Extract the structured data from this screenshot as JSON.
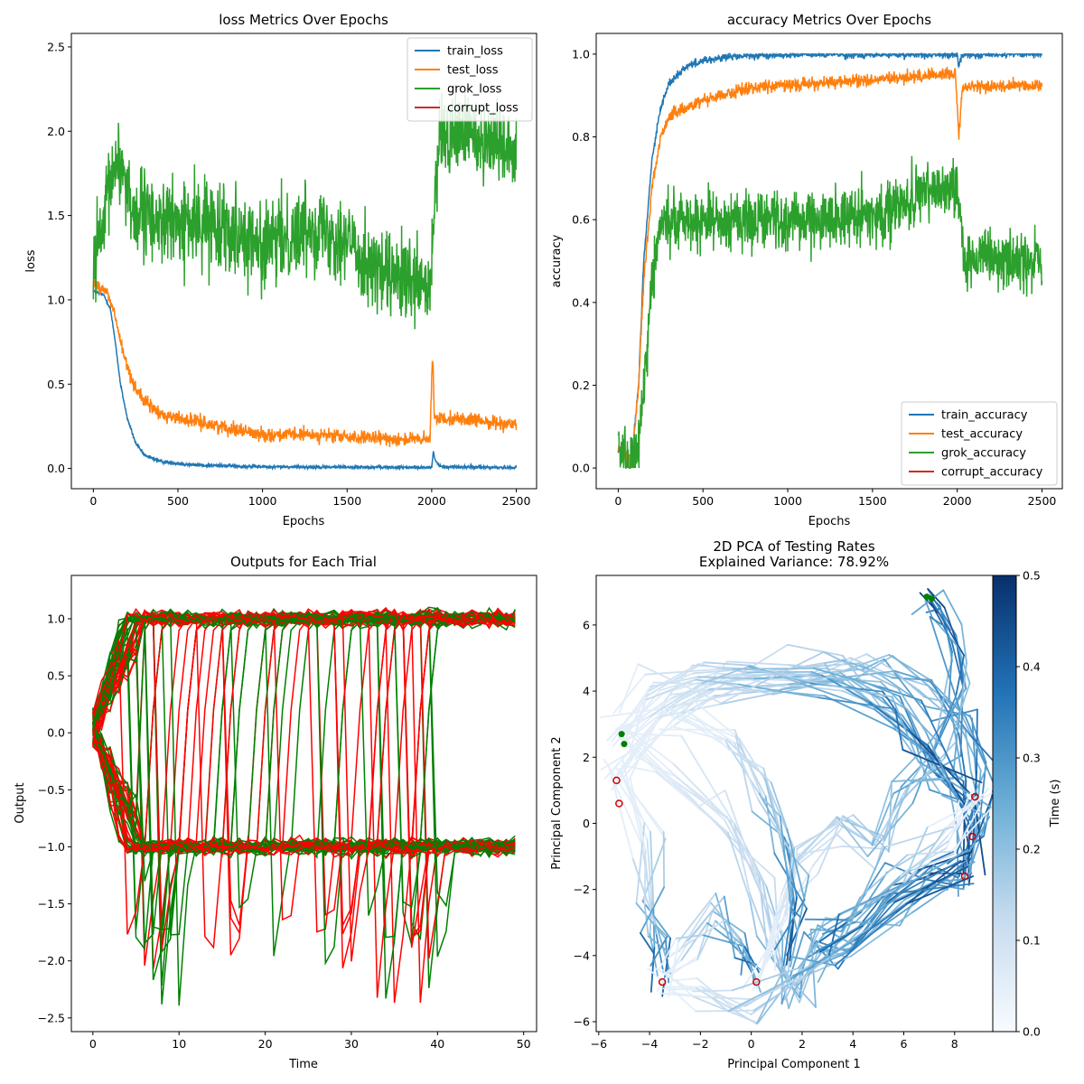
{
  "figure": {
    "colors": {
      "train": "#1f77b4",
      "test": "#ff7f0e",
      "grok": "#2ca02c",
      "corrupt": "#d62728",
      "trial_green": "#008000",
      "trial_red": "#ff0000",
      "start_green": "#008000",
      "end_red": "#d00000"
    }
  },
  "chart_data": [
    {
      "type": "line",
      "title": "loss Metrics Over Epochs",
      "xlabel": "Epochs",
      "ylabel": "loss",
      "xlim": [
        -130,
        2620
      ],
      "ylim": [
        -0.12,
        2.58
      ],
      "xticks": [
        0,
        500,
        1000,
        1500,
        2000,
        2500
      ],
      "yticks": [
        0.0,
        0.5,
        1.0,
        1.5,
        2.0,
        2.5
      ],
      "legend": "top-right",
      "series": [
        {
          "name": "train_loss",
          "color": "#1f77b4",
          "keypoints": [
            [
              0,
              1.05
            ],
            [
              60,
              1.03
            ],
            [
              100,
              0.95
            ],
            [
              130,
              0.75
            ],
            [
              160,
              0.5
            ],
            [
              200,
              0.3
            ],
            [
              250,
              0.15
            ],
            [
              300,
              0.08
            ],
            [
              400,
              0.04
            ],
            [
              600,
              0.02
            ],
            [
              1000,
              0.01
            ],
            [
              1500,
              0.008
            ],
            [
              2000,
              0.005
            ],
            [
              2010,
              0.1
            ],
            [
              2020,
              0.05
            ],
            [
              2050,
              0.01
            ],
            [
              2500,
              0.005
            ]
          ],
          "noise": 0.01
        },
        {
          "name": "test_loss",
          "color": "#ff7f0e",
          "keypoints": [
            [
              0,
              1.1
            ],
            [
              80,
              1.05
            ],
            [
              130,
              0.9
            ],
            [
              160,
              0.75
            ],
            [
              200,
              0.6
            ],
            [
              250,
              0.48
            ],
            [
              300,
              0.4
            ],
            [
              400,
              0.32
            ],
            [
              600,
              0.28
            ],
            [
              800,
              0.24
            ],
            [
              1000,
              0.2
            ],
            [
              1300,
              0.2
            ],
            [
              1600,
              0.18
            ],
            [
              1990,
              0.17
            ],
            [
              2005,
              0.7
            ],
            [
              2015,
              0.3
            ],
            [
              2100,
              0.3
            ],
            [
              2500,
              0.26
            ]
          ],
          "noise": 0.04
        },
        {
          "name": "grok_loss",
          "color": "#2ca02c",
          "keypoints": [
            [
              0,
              1.2
            ],
            [
              60,
              1.4
            ],
            [
              100,
              1.7
            ],
            [
              150,
              1.85
            ],
            [
              250,
              1.5
            ],
            [
              500,
              1.45
            ],
            [
              800,
              1.45
            ],
            [
              1000,
              1.3
            ],
            [
              1300,
              1.45
            ],
            [
              1500,
              1.35
            ],
            [
              1700,
              1.15
            ],
            [
              1990,
              1.05
            ],
            [
              2020,
              1.6
            ],
            [
              2050,
              1.95
            ],
            [
              2200,
              2.0
            ],
            [
              2500,
              1.9
            ]
          ],
          "noise": 0.25
        },
        {
          "name": "corrupt_loss",
          "color": "#d62728",
          "keypoints": [],
          "noise": 0
        }
      ]
    },
    {
      "type": "line",
      "title": "accuracy Metrics Over Epochs",
      "xlabel": "Epochs",
      "ylabel": "accuracy",
      "xlim": [
        -130,
        2620
      ],
      "ylim": [
        -0.05,
        1.05
      ],
      "xticks": [
        0,
        500,
        1000,
        1500,
        2000,
        2500
      ],
      "yticks": [
        0.0,
        0.2,
        0.4,
        0.6,
        0.8,
        1.0
      ],
      "legend": "bottom-right",
      "series": [
        {
          "name": "train_accuracy",
          "color": "#1f77b4",
          "keypoints": [
            [
              0,
              0.05
            ],
            [
              80,
              0.02
            ],
            [
              120,
              0.2
            ],
            [
              150,
              0.5
            ],
            [
              200,
              0.75
            ],
            [
              250,
              0.87
            ],
            [
              300,
              0.93
            ],
            [
              400,
              0.97
            ],
            [
              500,
              0.985
            ],
            [
              700,
              0.995
            ],
            [
              1000,
              1.0
            ],
            [
              2000,
              1.0
            ],
            [
              2010,
              0.97
            ],
            [
              2030,
              1.0
            ],
            [
              2500,
              1.0
            ]
          ],
          "noise": 0.01
        },
        {
          "name": "test_accuracy",
          "color": "#ff7f0e",
          "keypoints": [
            [
              0,
              0.05
            ],
            [
              80,
              0.01
            ],
            [
              120,
              0.2
            ],
            [
              150,
              0.45
            ],
            [
              200,
              0.68
            ],
            [
              250,
              0.8
            ],
            [
              300,
              0.85
            ],
            [
              500,
              0.89
            ],
            [
              800,
              0.92
            ],
            [
              1200,
              0.93
            ],
            [
              1600,
              0.94
            ],
            [
              1990,
              0.955
            ],
            [
              2010,
              0.8
            ],
            [
              2030,
              0.92
            ],
            [
              2500,
              0.925
            ]
          ],
          "noise": 0.015
        },
        {
          "name": "grok_accuracy",
          "color": "#2ca02c",
          "keypoints": [
            [
              0,
              0.05
            ],
            [
              100,
              0.0
            ],
            [
              150,
              0.2
            ],
            [
              200,
              0.45
            ],
            [
              250,
              0.6
            ],
            [
              500,
              0.6
            ],
            [
              800,
              0.6
            ],
            [
              1200,
              0.6
            ],
            [
              1600,
              0.62
            ],
            [
              1900,
              0.68
            ],
            [
              2000,
              0.68
            ],
            [
              2050,
              0.5
            ],
            [
              2200,
              0.5
            ],
            [
              2500,
              0.5
            ]
          ],
          "noise": 0.07
        },
        {
          "name": "corrupt_accuracy",
          "color": "#d62728",
          "keypoints": [],
          "noise": 0
        }
      ]
    },
    {
      "type": "line",
      "title": "Outputs for Each Trial",
      "xlabel": "Time",
      "ylabel": "Output",
      "xlim": [
        -2.5,
        51.5
      ],
      "ylim": [
        -2.62,
        1.38
      ],
      "xticks": [
        0,
        10,
        20,
        30,
        40,
        50
      ],
      "yticks": [
        -2.5,
        -2.0,
        -1.5,
        -1.0,
        -0.5,
        0.0,
        0.5,
        1.0
      ],
      "n_trials_per_color": 45,
      "time_range": [
        0,
        49
      ],
      "levels": [
        1.0,
        -1.0
      ]
    },
    {
      "type": "line",
      "title": "2D PCA of Testing Rates",
      "subtitle": "Explained Variance: 78.92%",
      "xlabel": "Principal Component 1",
      "ylabel": "Principal Component 2",
      "xlim": [
        -6.1,
        9.5
      ],
      "ylim": [
        -6.3,
        7.5
      ],
      "xticks": [
        -6,
        -4,
        -2,
        0,
        2,
        4,
        6,
        8
      ],
      "yticks": [
        -6,
        -4,
        -2,
        0,
        2,
        4,
        6
      ],
      "colorbar": {
        "label": "Time (s)",
        "range": [
          0.0,
          0.5
        ],
        "ticks": [
          0.0,
          0.1,
          0.2,
          0.3,
          0.4,
          0.5
        ],
        "colormap": "Blues"
      },
      "paths": [
        [
          [
            -5.1,
            2.6
          ],
          [
            -3,
            3.7
          ],
          [
            -1,
            4.3
          ],
          [
            2,
            4.4
          ],
          [
            4,
            4.8
          ],
          [
            5.5,
            4.5
          ],
          [
            7,
            3.8
          ],
          [
            8.5,
            3
          ],
          [
            8.9,
            1.5
          ],
          [
            8.8,
            -0.5
          ],
          [
            8.3,
            -1.5
          ]
        ],
        [
          [
            -5.3,
            1.5
          ],
          [
            -3.5,
            3.2
          ],
          [
            -1.5,
            4
          ],
          [
            1,
            4.2
          ],
          [
            3.5,
            4.2
          ],
          [
            6,
            3.2
          ],
          [
            7.5,
            1.5
          ],
          [
            8.7,
            0
          ],
          [
            8.5,
            -1.6
          ]
        ],
        [
          [
            -5.1,
            2.6
          ],
          [
            -3,
            1.5
          ],
          [
            -1,
            0
          ],
          [
            0.5,
            -2
          ],
          [
            1,
            -4
          ],
          [
            1.5,
            -5.2
          ],
          [
            2.5,
            -3.5
          ],
          [
            4,
            -3.7
          ],
          [
            5.5,
            -2.5
          ],
          [
            7,
            -1.5
          ],
          [
            8.3,
            -1.5
          ]
        ],
        [
          [
            -5.3,
            1.5
          ],
          [
            -4.2,
            -0.5
          ],
          [
            -4,
            -2.5
          ],
          [
            -3.8,
            -3.5
          ],
          [
            -3.5,
            -4.8
          ]
        ],
        [
          [
            -3.5,
            -4.8
          ],
          [
            -2.5,
            -4
          ],
          [
            -1.5,
            -2.8
          ],
          [
            -0.5,
            -3.5
          ],
          [
            0.3,
            -4.8
          ]
        ],
        [
          [
            0.3,
            -4.8
          ],
          [
            1,
            -3
          ],
          [
            2,
            -1
          ],
          [
            3.5,
            0
          ],
          [
            5,
            -0.5
          ],
          [
            6,
            1
          ],
          [
            7.5,
            2
          ],
          [
            8.2,
            4
          ],
          [
            8,
            5.5
          ],
          [
            7.5,
            6.3
          ],
          [
            6.9,
            6.8
          ]
        ],
        [
          [
            -3.5,
            -4.8
          ],
          [
            -2,
            -5.2
          ],
          [
            0,
            -5.5
          ],
          [
            2,
            -4.5
          ],
          [
            3.5,
            -3.8
          ],
          [
            6,
            -2.5
          ],
          [
            8.5,
            -1.3
          ]
        ],
        [
          [
            -5,
            2.8
          ],
          [
            -4,
            4
          ],
          [
            -2,
            4.5
          ],
          [
            0,
            4.5
          ],
          [
            2.5,
            4.6
          ],
          [
            5,
            4
          ],
          [
            7,
            2.5
          ],
          [
            8.8,
            0.8
          ]
        ],
        [
          [
            -3,
            3.5
          ],
          [
            -1,
            2.5
          ],
          [
            0.5,
            1
          ],
          [
            1.5,
            -0.5
          ],
          [
            2,
            -2.5
          ],
          [
            1.5,
            -4
          ]
        ],
        [
          [
            8.8,
            0.8
          ],
          [
            7.5,
            -0.5
          ],
          [
            6,
            -1.5
          ],
          [
            4,
            -2.8
          ],
          [
            2.5,
            -3.6
          ]
        ]
      ],
      "start_points": [
        [
          -5.1,
          2.7
        ],
        [
          -5.0,
          2.4
        ],
        [
          6.9,
          6.85
        ],
        [
          7.1,
          6.8
        ]
      ],
      "end_points": [
        [
          -5.3,
          1.3
        ],
        [
          -5.2,
          0.6
        ],
        [
          -3.5,
          -4.8
        ],
        [
          0.2,
          -4.8
        ],
        [
          8.8,
          0.8
        ],
        [
          8.7,
          -0.4
        ],
        [
          8.4,
          -1.6
        ]
      ]
    }
  ]
}
